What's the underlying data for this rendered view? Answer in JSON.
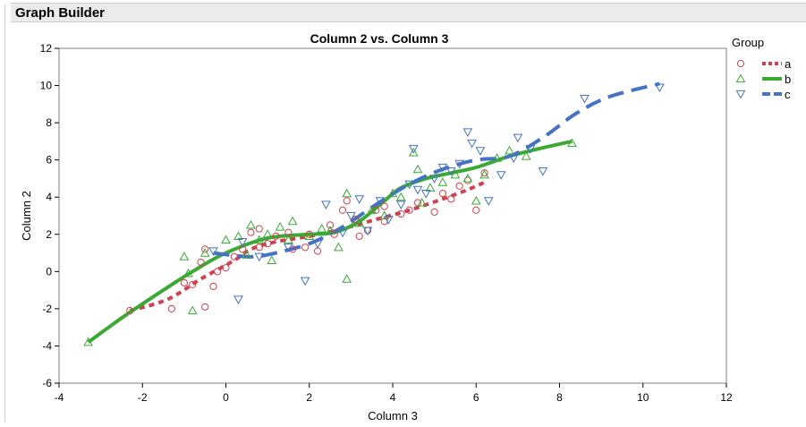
{
  "window": {
    "title": "Graph Builder"
  },
  "chart_data": {
    "type": "scatter",
    "title": "Column 2 vs. Column 3",
    "xlabel": "Column 3",
    "ylabel": "Column 2",
    "xlim": [
      -4,
      12
    ],
    "ylim": [
      -6,
      12
    ],
    "xticks": [
      -4,
      -2,
      0,
      2,
      4,
      6,
      8,
      10,
      12
    ],
    "yticks": [
      -6,
      -4,
      -2,
      0,
      2,
      4,
      6,
      8,
      10,
      12
    ],
    "grid": false,
    "legend": {
      "title": "Group",
      "placement": "right"
    },
    "series": [
      {
        "name": "a",
        "color": "#d0404f",
        "marker": "circle",
        "line": "dotted",
        "points": [
          [
            -2.3,
            -2.1
          ],
          [
            -1.3,
            -2.0
          ],
          [
            -1.0,
            -0.6
          ],
          [
            -0.8,
            -0.7
          ],
          [
            -0.6,
            0.5
          ],
          [
            -0.5,
            1.2
          ],
          [
            -0.5,
            -1.9
          ],
          [
            -0.3,
            -0.8
          ],
          [
            -0.2,
            0.0
          ],
          [
            0.0,
            0.2
          ],
          [
            0.2,
            0.8
          ],
          [
            0.4,
            1.2
          ],
          [
            0.6,
            2.1
          ],
          [
            0.8,
            1.3
          ],
          [
            0.8,
            2.3
          ],
          [
            1.0,
            1.5
          ],
          [
            1.2,
            1.9
          ],
          [
            1.5,
            2.1
          ],
          [
            1.6,
            1.2
          ],
          [
            1.9,
            1.3
          ],
          [
            2.0,
            2.0
          ],
          [
            2.2,
            1.1
          ],
          [
            2.5,
            2.5
          ],
          [
            2.6,
            2.0
          ],
          [
            2.8,
            3.3
          ],
          [
            2.9,
            3.8
          ],
          [
            3.1,
            2.8
          ],
          [
            3.2,
            1.9
          ],
          [
            3.4,
            2.2
          ],
          [
            3.6,
            3.3
          ],
          [
            3.8,
            3.5
          ],
          [
            3.8,
            2.7
          ],
          [
            4.2,
            3.1
          ],
          [
            4.4,
            3.3
          ],
          [
            4.6,
            3.7
          ],
          [
            5.0,
            3.2
          ],
          [
            5.2,
            4.2
          ],
          [
            5.4,
            3.9
          ],
          [
            5.6,
            4.6
          ],
          [
            5.8,
            4.9
          ],
          [
            6.0,
            3.3
          ],
          [
            6.2,
            5.3
          ]
        ],
        "fit": [
          [
            -2.3,
            -2.1
          ],
          [
            -1.4,
            -1.5
          ],
          [
            -0.6,
            -0.4
          ],
          [
            0.2,
            0.6
          ],
          [
            0.6,
            1.2
          ],
          [
            1.2,
            1.6
          ],
          [
            2.0,
            1.9
          ],
          [
            2.8,
            2.3
          ],
          [
            3.6,
            2.8
          ],
          [
            4.4,
            3.3
          ],
          [
            5.2,
            3.9
          ],
          [
            5.8,
            4.4
          ],
          [
            6.2,
            4.8
          ]
        ]
      },
      {
        "name": "b",
        "color": "#3aaa35",
        "marker": "triangle-up",
        "line": "solid",
        "points": [
          [
            -3.3,
            -3.8
          ],
          [
            -1.0,
            0.8
          ],
          [
            -0.9,
            -0.1
          ],
          [
            -0.8,
            -2.1
          ],
          [
            -0.5,
            1.0
          ],
          [
            0.0,
            1.7
          ],
          [
            0.3,
            1.9
          ],
          [
            0.5,
            0.9
          ],
          [
            0.6,
            2.5
          ],
          [
            0.8,
            1.7
          ],
          [
            1.0,
            2.0
          ],
          [
            1.1,
            0.6
          ],
          [
            1.3,
            2.4
          ],
          [
            1.5,
            1.7
          ],
          [
            1.6,
            2.7
          ],
          [
            2.0,
            1.9
          ],
          [
            2.3,
            2.3
          ],
          [
            2.5,
            2.2
          ],
          [
            2.7,
            1.3
          ],
          [
            2.9,
            4.2
          ],
          [
            2.9,
            -0.4
          ],
          [
            3.2,
            2.6
          ],
          [
            3.5,
            3.3
          ],
          [
            3.8,
            3.0
          ],
          [
            4.0,
            4.2
          ],
          [
            4.2,
            4.0
          ],
          [
            4.5,
            6.4
          ],
          [
            4.6,
            5.5
          ],
          [
            4.7,
            3.7
          ],
          [
            4.9,
            4.5
          ],
          [
            5.2,
            4.8
          ],
          [
            5.5,
            5.2
          ],
          [
            5.8,
            5.0
          ],
          [
            6.0,
            3.8
          ],
          [
            6.2,
            5.2
          ],
          [
            6.5,
            6.1
          ],
          [
            6.8,
            6.5
          ],
          [
            7.2,
            6.2
          ],
          [
            8.3,
            6.9
          ]
        ],
        "fit": [
          [
            -3.3,
            -3.8
          ],
          [
            -2.5,
            -2.5
          ],
          [
            -1.5,
            -1.0
          ],
          [
            -0.8,
            0.0
          ],
          [
            0.0,
            1.0
          ],
          [
            1.0,
            1.8
          ],
          [
            2.0,
            2.0
          ],
          [
            2.6,
            2.1
          ],
          [
            3.2,
            2.7
          ],
          [
            3.8,
            3.8
          ],
          [
            4.2,
            4.5
          ],
          [
            4.8,
            5.0
          ],
          [
            5.4,
            5.3
          ],
          [
            6.0,
            5.6
          ],
          [
            6.8,
            6.2
          ],
          [
            7.5,
            6.6
          ],
          [
            8.3,
            7.0
          ]
        ]
      },
      {
        "name": "c",
        "color": "#4472c4",
        "marker": "triangle-down",
        "line": "dashed",
        "points": [
          [
            -0.3,
            1.1
          ],
          [
            0.3,
            -1.5
          ],
          [
            0.4,
            1.6
          ],
          [
            0.8,
            0.8
          ],
          [
            1.5,
            1.3
          ],
          [
            1.9,
            -0.5
          ],
          [
            2.2,
            1.5
          ],
          [
            2.4,
            3.6
          ],
          [
            2.8,
            2.1
          ],
          [
            3.0,
            3.0
          ],
          [
            3.2,
            3.9
          ],
          [
            3.4,
            2.2
          ],
          [
            3.7,
            3.8
          ],
          [
            3.9,
            2.8
          ],
          [
            4.2,
            3.6
          ],
          [
            4.4,
            4.7
          ],
          [
            4.5,
            6.6
          ],
          [
            4.6,
            4.4
          ],
          [
            4.8,
            4.2
          ],
          [
            5.0,
            5.0
          ],
          [
            5.2,
            5.6
          ],
          [
            5.4,
            5.4
          ],
          [
            5.6,
            5.8
          ],
          [
            5.8,
            7.5
          ],
          [
            5.9,
            6.9
          ],
          [
            6.1,
            6.5
          ],
          [
            6.3,
            3.8
          ],
          [
            6.6,
            5.2
          ],
          [
            6.9,
            6.1
          ],
          [
            7.0,
            7.2
          ],
          [
            7.3,
            6.6
          ],
          [
            7.6,
            5.4
          ],
          [
            8.6,
            9.3
          ],
          [
            10.4,
            9.9
          ]
        ],
        "fit": [
          [
            -0.3,
            1.0
          ],
          [
            0.5,
            0.8
          ],
          [
            1.0,
            0.9
          ],
          [
            2.0,
            1.5
          ],
          [
            2.8,
            2.4
          ],
          [
            3.6,
            3.6
          ],
          [
            4.4,
            4.7
          ],
          [
            5.2,
            5.5
          ],
          [
            6.0,
            6.0
          ],
          [
            6.8,
            6.2
          ],
          [
            7.6,
            7.2
          ],
          [
            8.4,
            8.5
          ],
          [
            9.2,
            9.4
          ],
          [
            10.4,
            10.1
          ]
        ]
      }
    ]
  }
}
